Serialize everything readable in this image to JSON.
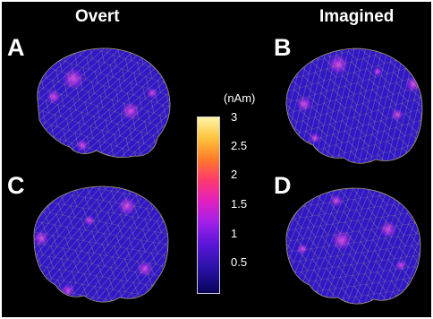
{
  "titles": {
    "overt": "Overt",
    "imagined": "Imagined"
  },
  "panels": [
    {
      "letter": "A",
      "condition": "Overt"
    },
    {
      "letter": "B",
      "condition": "Imagined"
    },
    {
      "letter": "C",
      "condition": "Overt"
    },
    {
      "letter": "D",
      "condition": "Imagined"
    }
  ],
  "colorbar": {
    "unit": "(nAm)",
    "ticks": [
      "3",
      "2.5",
      "2",
      "1.5",
      "1",
      "0.5"
    ],
    "colors": [
      "#08045a",
      "#2a11a6",
      "#5a16d8",
      "#a020e8",
      "#e020c0",
      "#ff3870",
      "#ff7a2a",
      "#ffc33a",
      "#fff4a8"
    ]
  },
  "brain_color": "#3018c8",
  "mesh_color": "#a89a78"
}
